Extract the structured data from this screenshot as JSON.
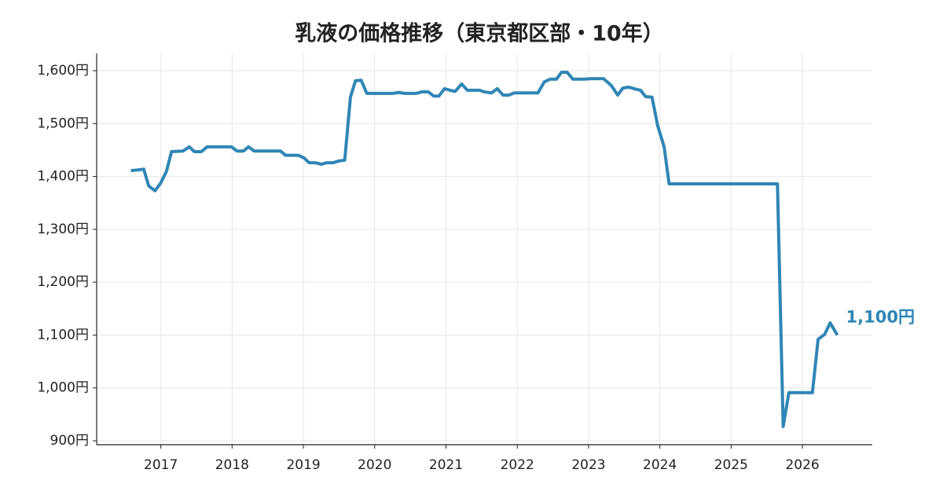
{
  "chart_data": {
    "type": "line",
    "title": "乳液の価格推移（東京都区部・10年）",
    "x": [
      2016.58,
      2016.72,
      2016.76,
      2016.83,
      2016.92,
      2017.0,
      2017.08,
      2017.15,
      2017.31,
      2017.4,
      2017.47,
      2017.57,
      2017.65,
      2017.99,
      2018.07,
      2018.16,
      2018.23,
      2018.31,
      2018.68,
      2018.75,
      2018.93,
      2019.01,
      2019.08,
      2019.17,
      2019.25,
      2019.33,
      2019.42,
      2019.49,
      2019.58,
      2019.66,
      2019.73,
      2019.81,
      2019.89,
      2020.25,
      2020.34,
      2020.42,
      2020.58,
      2020.66,
      2020.75,
      2020.83,
      2020.9,
      2020.98,
      2021.06,
      2021.13,
      2021.22,
      2021.3,
      2021.47,
      2021.54,
      2021.64,
      2021.72,
      2021.8,
      2021.88,
      2021.96,
      2022.29,
      2022.38,
      2022.46,
      2022.55,
      2022.62,
      2022.7,
      2022.78,
      2022.94,
      2023.03,
      2023.21,
      2023.32,
      2023.41,
      2023.48,
      2023.56,
      2023.64,
      2023.73,
      2023.8,
      2023.89,
      2023.97,
      2024.06,
      2024.13,
      2025.65,
      2025.73,
      2025.81,
      2026.14,
      2026.22,
      2026.31,
      2026.39,
      2026.49
    ],
    "values": [
      1411,
      1413,
      1414,
      1382,
      1373,
      1388,
      1410,
      1447,
      1448,
      1456,
      1447,
      1447,
      1456,
      1456,
      1448,
      1448,
      1456,
      1448,
      1448,
      1440,
      1440,
      1435,
      1426,
      1426,
      1423,
      1426,
      1426,
      1429,
      1431,
      1550,
      1581,
      1582,
      1557,
      1557,
      1559,
      1557,
      1557,
      1560,
      1560,
      1552,
      1552,
      1566,
      1563,
      1561,
      1575,
      1563,
      1563,
      1560,
      1558,
      1566,
      1554,
      1554,
      1558,
      1558,
      1579,
      1584,
      1584,
      1597,
      1597,
      1584,
      1584,
      1585,
      1585,
      1572,
      1554,
      1567,
      1569,
      1566,
      1563,
      1551,
      1550,
      1496,
      1456,
      1386,
      1386,
      927,
      991,
      991,
      1092,
      1101,
      1123,
      1100
    ],
    "color": "#2e86b5",
    "annotation": "1,100円",
    "xlim": [
      2016.1,
      2026.98
    ],
    "xticks": [
      2017,
      2018,
      2019,
      2020,
      2021,
      2022,
      2023,
      2024,
      2025,
      2026
    ],
    "ylim": [
      892.6,
      1632.7
    ],
    "yticks": [
      {
        "value": 900,
        "label": "900円"
      },
      {
        "value": 1000,
        "label": "1,000円"
      },
      {
        "value": 1100,
        "label": "1,100円"
      },
      {
        "value": 1200,
        "label": "1,200円"
      },
      {
        "value": 1300,
        "label": "1,300円"
      },
      {
        "value": 1400,
        "label": "1,400円"
      },
      {
        "value": 1500,
        "label": "1,500円"
      },
      {
        "value": 1600,
        "label": "1,600円"
      }
    ],
    "grid": true
  }
}
